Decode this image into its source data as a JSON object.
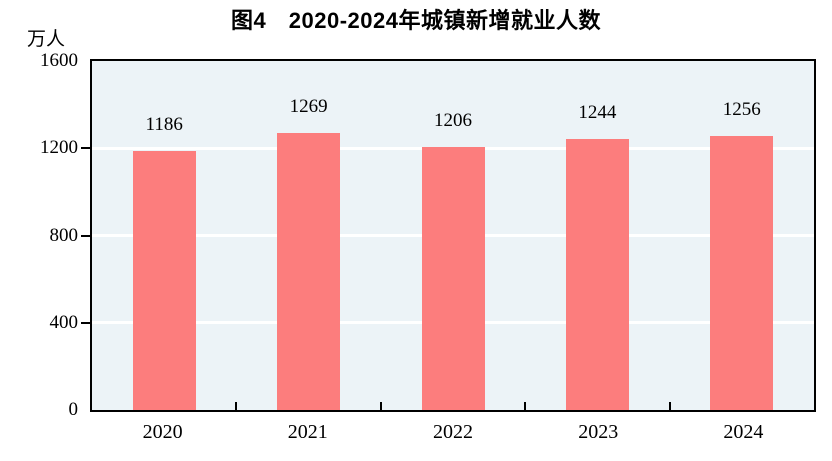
{
  "chart_data": {
    "type": "bar",
    "title": "图4　2020-2024年城镇新增就业人数",
    "unit_label": "万人",
    "categories": [
      "2020",
      "2021",
      "2022",
      "2023",
      "2024"
    ],
    "values": [
      1186,
      1269,
      1206,
      1244,
      1256
    ],
    "xlabel": "",
    "ylabel": "万人",
    "ylim": [
      0,
      1600
    ],
    "yticks": [
      0,
      400,
      800,
      1200,
      1600
    ],
    "grid": "horizontal white gridlines at 400, 800, 1200 behind bars",
    "legend": "none",
    "colors": {
      "bar": "#FC7D7D",
      "plot_background": "#ECF3F7",
      "gridline": "#FFFFFF",
      "axis_frame": "#000000",
      "text": "#000000"
    }
  }
}
